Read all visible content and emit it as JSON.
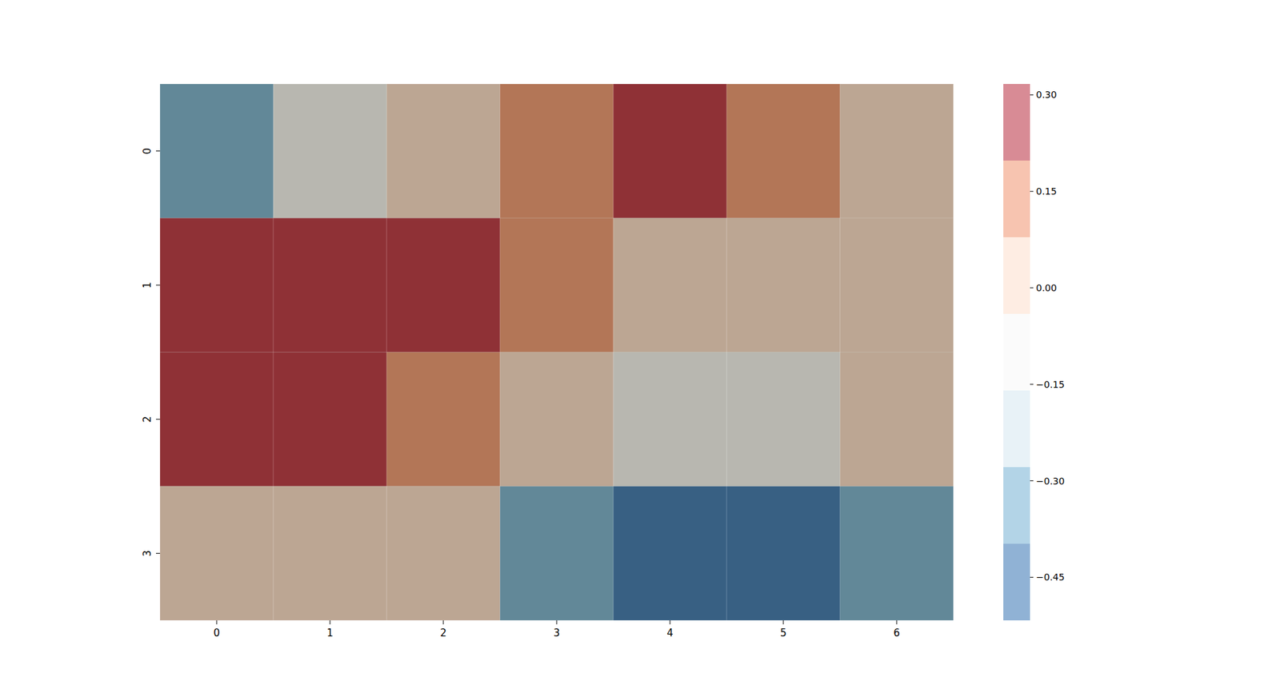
{
  "chart_data": {
    "type": "heatmap",
    "xticks": [
      0,
      1,
      2,
      3,
      4,
      5,
      6
    ],
    "yticks": [
      0,
      1,
      2,
      3
    ],
    "xlim": [
      -0.5,
      6.5
    ],
    "ylim": [
      -0.5,
      3.5
    ],
    "values": [
      [
        -0.33,
        -0.1,
        0.0,
        0.12,
        0.3,
        0.15,
        0.02
      ],
      [
        0.28,
        0.27,
        0.25,
        0.13,
        0.01,
        0.0,
        0.02
      ],
      [
        0.31,
        0.3,
        0.1,
        0.03,
        -0.12,
        -0.14,
        0.04
      ],
      [
        0.0,
        0.01,
        0.02,
        -0.35,
        -0.48,
        -0.45,
        -0.3
      ]
    ],
    "color_range": [
      -0.517,
      0.317
    ],
    "color_ticks": [
      {
        "value": 0.3,
        "label": "0.30"
      },
      0.15,
      {
        "value": 0,
        "label": "0.00"
      },
      {
        "value": -0.15,
        "label": "−0.15"
      },
      {
        "value": -0.3,
        "label": "−0.30"
      },
      {
        "value": -0.45,
        "label": "−0.45"
      }
    ]
  }
}
